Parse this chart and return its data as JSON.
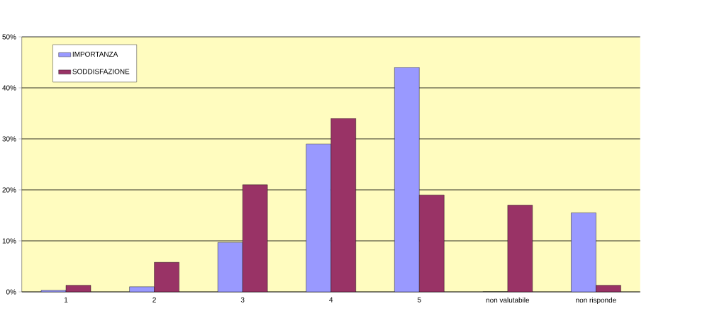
{
  "chart_data": {
    "type": "bar",
    "categories": [
      "1",
      "2",
      "3",
      "4",
      "5",
      "non valutabile",
      "non risponde"
    ],
    "series": [
      {
        "name": "IMPORTANZA",
        "color": "#9999ff",
        "values": [
          0.3,
          1,
          9.7,
          29,
          44,
          0,
          15.5
        ]
      },
      {
        "name": "SODDISFAZIONE",
        "color": "#993366",
        "values": [
          1.3,
          5.8,
          21,
          34,
          19,
          17,
          1.3
        ]
      }
    ],
    "ylim": [
      0,
      50
    ],
    "yticks": [
      {
        "value": 0,
        "label": "0%"
      },
      {
        "value": 10,
        "label": "10%"
      },
      {
        "value": 20,
        "label": "20%"
      },
      {
        "value": 30,
        "label": "30%"
      },
      {
        "value": 40,
        "label": "40%"
      },
      {
        "value": 50,
        "label": "50%"
      }
    ],
    "grid": "y",
    "legend": "top left"
  }
}
